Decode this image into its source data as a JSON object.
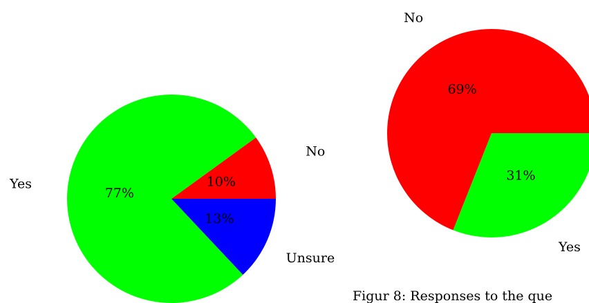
{
  "chart_data": [
    {
      "type": "pie",
      "categories": [
        "No",
        "Yes",
        "Unsure"
      ],
      "values": [
        10,
        77,
        13
      ],
      "value_labels": [
        "10%",
        "77%",
        "13%"
      ],
      "colors": [
        "#ff0000",
        "#00ff00",
        "#0000ff"
      ],
      "startangle": 0,
      "counterclock": true
    },
    {
      "type": "pie",
      "categories": [
        "Yes",
        "No"
      ],
      "values": [
        31,
        69
      ],
      "value_labels": [
        "31%",
        "69%"
      ],
      "colors": [
        "#00ff00",
        "#ff0000"
      ],
      "startangle": 0,
      "counterclock": false
    }
  ],
  "caption": "Figur 8: Responses to the que"
}
